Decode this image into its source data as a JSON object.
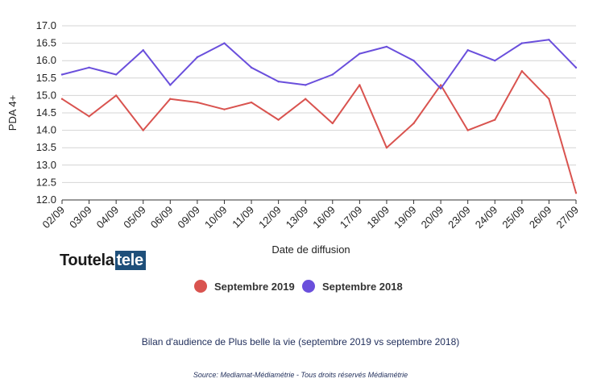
{
  "chart_data": {
    "type": "line",
    "title": "",
    "xlabel": "Date de diffusion",
    "ylabel": "PDA 4+",
    "ylim": [
      12.0,
      17.0
    ],
    "yticks": [
      "12.0",
      "12.5",
      "13.0",
      "13.5",
      "14.0",
      "14.5",
      "15.0",
      "15.5",
      "16.0",
      "16.5",
      "17.0"
    ],
    "grid": true,
    "legend_position": "bottom",
    "categories": [
      "02/09",
      "03/09",
      "04/09",
      "05/09",
      "06/09",
      "09/09",
      "10/09",
      "11/09",
      "12/09",
      "13/09",
      "16/09",
      "17/09",
      "18/09",
      "19/09",
      "20/09",
      "23/09",
      "24/09",
      "25/09",
      "26/09",
      "27/09"
    ],
    "series": [
      {
        "name": "Septembre 2019",
        "color": "#d9534f",
        "values": [
          14.9,
          14.4,
          15.0,
          14.0,
          14.9,
          14.8,
          14.6,
          14.8,
          14.3,
          14.9,
          14.2,
          15.3,
          13.5,
          14.2,
          15.3,
          14.0,
          14.3,
          15.7,
          14.9,
          12.2
        ]
      },
      {
        "name": "Septembre 2018",
        "color": "#6a4fdc",
        "values": [
          15.6,
          15.8,
          15.6,
          16.3,
          15.3,
          16.1,
          16.5,
          15.8,
          15.4,
          15.3,
          15.6,
          16.2,
          16.4,
          16.0,
          15.2,
          16.3,
          16.0,
          16.5,
          16.6,
          15.8
        ]
      }
    ]
  },
  "logo": {
    "part1": "Toutela",
    "part2": "tele"
  },
  "caption": "Bilan d'audience de Plus belle la vie (septembre 2019 vs septembre 2018)",
  "source": "Source: Mediamat-Médiamétrie - Tous droits réservés Médiamétrie"
}
